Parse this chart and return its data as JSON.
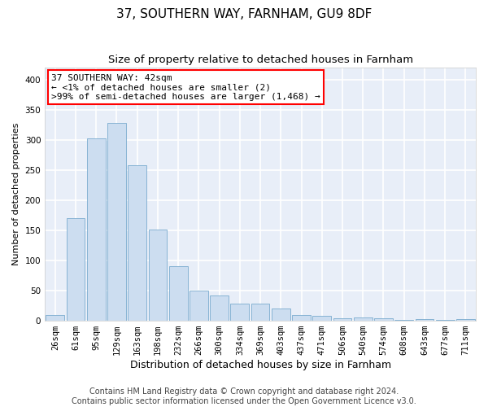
{
  "title": "37, SOUTHERN WAY, FARNHAM, GU9 8DF",
  "subtitle": "Size of property relative to detached houses in Farnham",
  "xlabel": "Distribution of detached houses by size in Farnham",
  "ylabel": "Number of detached properties",
  "bar_color": "#ccddf0",
  "bar_edge_color": "#7aabce",
  "background_color": "#e8eef8",
  "grid_color": "#ffffff",
  "categories": [
    "26sqm",
    "61sqm",
    "95sqm",
    "129sqm",
    "163sqm",
    "198sqm",
    "232sqm",
    "266sqm",
    "300sqm",
    "334sqm",
    "369sqm",
    "403sqm",
    "437sqm",
    "471sqm",
    "506sqm",
    "540sqm",
    "574sqm",
    "608sqm",
    "643sqm",
    "677sqm",
    "711sqm"
  ],
  "values": [
    10,
    170,
    302,
    328,
    258,
    152,
    90,
    50,
    42,
    29,
    29,
    20,
    10,
    8,
    4,
    5,
    4,
    1,
    3,
    1,
    3
  ],
  "ylim": [
    0,
    420
  ],
  "yticks": [
    0,
    50,
    100,
    150,
    200,
    250,
    300,
    350,
    400
  ],
  "annotation_line1": "37 SOUTHERN WAY: 42sqm",
  "annotation_line2": "← <1% of detached houses are smaller (2)",
  "annotation_line3": ">99% of semi-detached houses are larger (1,468) →",
  "footer_line1": "Contains HM Land Registry data © Crown copyright and database right 2024.",
  "footer_line2": "Contains public sector information licensed under the Open Government Licence v3.0.",
  "title_fontsize": 11,
  "subtitle_fontsize": 9.5,
  "xlabel_fontsize": 9,
  "ylabel_fontsize": 8,
  "tick_fontsize": 7.5,
  "annotation_fontsize": 8,
  "footer_fontsize": 7
}
